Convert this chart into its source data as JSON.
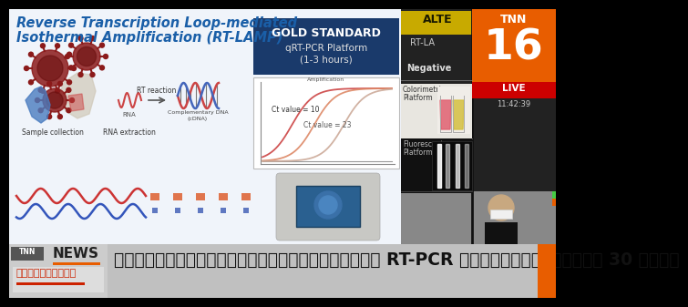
{
  "title_line1": "Reverse Transcription Loop-mediated",
  "title_line2": "Isothermal Amplification (RT-LAMP)",
  "gold_standard_label": "GOLD STANDARD",
  "gold_standard_sub1": "qRT-PCR Platform",
  "gold_standard_sub2": "(1-3 hours)",
  "ct_value_10": "Ct value = 10",
  "ct_value_23": "Ct value = 23",
  "bottom_bar_text": "เปิดวิธีตรวจโควิดใหม่คล้าย RT-PCR รู้ผลเร็วภายใน 30 นาที",
  "title_color": "#1a5fa8",
  "slide_bg": "#eef2f8",
  "gold_box_color": "#1a3a6b",
  "slide_content_bg": "#f5f5f5",
  "right_panel_bg": "#1a1a1a",
  "alte_bg": "#c8aa00",
  "alte_text": "ALTE",
  "tnn_bg": "#e85d00",
  "tnn_text": "TNN",
  "tnn_num": "16",
  "rt_la_text": "RT-LA",
  "negative_text": "Negative",
  "live_bg": "#cc0000",
  "live_text": "LIVE",
  "time_text": "11:42:39",
  "colorimetric_text1": "Colorimetric",
  "colorimetric_text2": "Platform",
  "fluorescent_text1": "Fluorescent",
  "fluorescent_text2": "Platform",
  "news_bar_bg": "#c8c8c8",
  "news_left_bg": "#d8d8d8",
  "tnn_label_bg": "#555555",
  "news_word": "NEWS",
  "khaothiang": "ข่าวเที่ยง",
  "orange_accent": "#e85d00",
  "sample_label": "Sample collection",
  "rna_label": "RNA extraction",
  "rt_reaction": "RT reaction",
  "comp_dna": "Complementary DNA\n(cDNA)",
  "rna_small": "RNA"
}
